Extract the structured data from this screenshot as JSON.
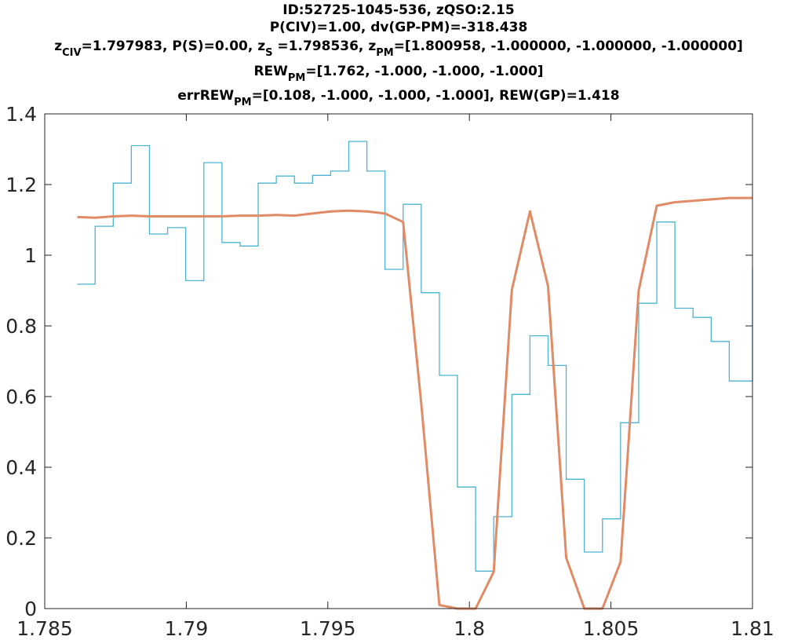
{
  "chart_data": {
    "type": "line",
    "title_lines": [
      [
        {
          "t": "ID:52725-1045-536, zQSO:2.15"
        }
      ],
      [
        {
          "t": "P(CIV)=1.00, dv(GP-PM)=-318.438"
        }
      ],
      [
        {
          "t": "z"
        },
        {
          "t": "CIV",
          "sub": true
        },
        {
          "t": "=1.797983, P(S)=0.00, z"
        },
        {
          "t": "S",
          "sub": true
        },
        {
          "t": " =1.798536, z"
        },
        {
          "t": "PM",
          "sub": true
        },
        {
          "t": "=[1.800958, -1.000000, -1.000000, -1.000000]"
        }
      ],
      [
        {
          "t": "REW"
        },
        {
          "t": "PM",
          "sub": true
        },
        {
          "t": "=[1.762, -1.000, -1.000, -1.000]"
        }
      ],
      [
        {
          "t": "errREW"
        },
        {
          "t": "PM",
          "sub": true
        },
        {
          "t": "=[0.108, -1.000, -1.000, -1.000], REW(GP)=1.418"
        }
      ]
    ],
    "xlabel": "",
    "ylabel": "",
    "xlim": [
      1.785,
      1.81
    ],
    "ylim": [
      0,
      1.4
    ],
    "xticks": [
      1.785,
      1.79,
      1.795,
      1.8,
      1.805,
      1.81
    ],
    "xtick_labels": [
      "1.785",
      "1.79",
      "1.795",
      "1.8",
      "1.805",
      "1.81"
    ],
    "yticks": [
      0,
      0.2,
      0.4,
      0.6,
      0.8,
      1,
      1.2,
      1.4
    ],
    "ytick_labels": [
      "0",
      "0.2",
      "0.4",
      "0.6",
      "0.8",
      "1",
      "1.2",
      "1.4"
    ],
    "grid": false,
    "series": [
      {
        "kind": "stairs",
        "color": "#4bb4d2",
        "edges": [
          1.78615,
          1.78678,
          1.78742,
          1.78806,
          1.7887,
          1.78934,
          1.78998,
          1.79062,
          1.79126,
          1.7919,
          1.79254,
          1.79318,
          1.79382,
          1.79446,
          1.7951,
          1.79574,
          1.79638,
          1.79702,
          1.79766,
          1.7983,
          1.79894,
          1.79958,
          1.80022,
          1.80086,
          1.8015,
          1.80214,
          1.80278,
          1.80342,
          1.80406,
          1.8047,
          1.80534,
          1.80598,
          1.80662,
          1.80726,
          1.8079,
          1.80854,
          1.80918,
          1.81
        ],
        "values": [
          0.918,
          1.082,
          1.204,
          1.31,
          1.06,
          1.078,
          0.928,
          1.262,
          1.036,
          1.026,
          1.204,
          1.224,
          1.204,
          1.226,
          1.238,
          1.322,
          1.238,
          0.96,
          1.144,
          0.894,
          0.66,
          0.344,
          0.106,
          0.26,
          0.606,
          0.772,
          0.688,
          0.366,
          0.16,
          0.254,
          0.526,
          0.864,
          1.094,
          0.85,
          0.824,
          0.756,
          0.644
        ],
        "end_value": 0.964
      },
      {
        "kind": "line",
        "color": "#e08a66",
        "x": [
          1.78615,
          1.78678,
          1.78742,
          1.78806,
          1.7887,
          1.78934,
          1.78998,
          1.79062,
          1.79126,
          1.7919,
          1.79254,
          1.79318,
          1.79382,
          1.79446,
          1.7951,
          1.79574,
          1.79638,
          1.79702,
          1.79766,
          1.7983,
          1.79894,
          1.79958,
          1.80022,
          1.80086,
          1.8015,
          1.80214,
          1.80278,
          1.80342,
          1.80406,
          1.8047,
          1.80534,
          1.80598,
          1.80662,
          1.80726,
          1.8079,
          1.80854,
          1.80918,
          1.81
        ],
        "y": [
          1.108,
          1.106,
          1.11,
          1.112,
          1.11,
          1.11,
          1.11,
          1.11,
          1.11,
          1.112,
          1.112,
          1.114,
          1.112,
          1.118,
          1.124,
          1.126,
          1.124,
          1.118,
          1.094,
          0.58,
          0.01,
          0.0,
          0.0,
          0.104,
          0.902,
          1.124,
          0.912,
          0.144,
          0.0,
          0.0,
          0.132,
          0.9,
          1.14,
          1.15,
          1.154,
          1.158,
          1.162,
          1.162
        ]
      }
    ]
  }
}
